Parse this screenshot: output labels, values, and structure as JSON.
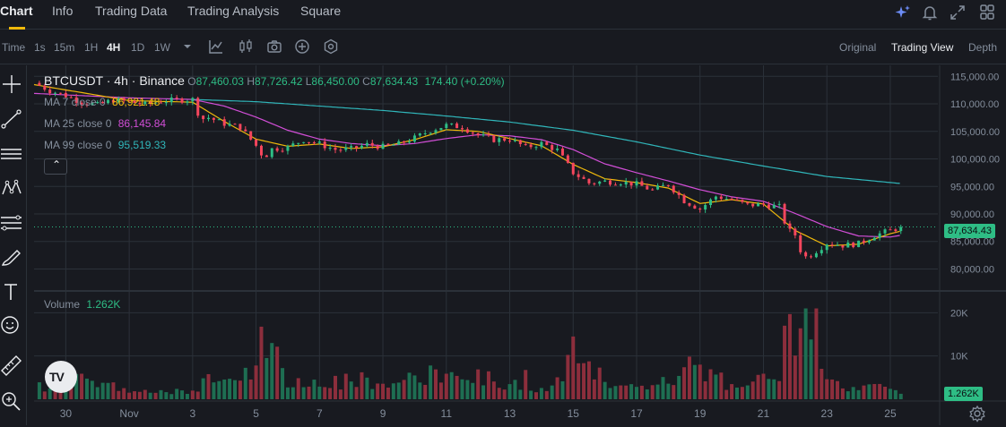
{
  "tabs": [
    {
      "label": "Chart",
      "active": true
    },
    {
      "label": "Info",
      "active": false
    },
    {
      "label": "Trading Data",
      "active": false
    },
    {
      "label": "Trading Analysis",
      "active": false
    },
    {
      "label": "Square",
      "active": false
    }
  ],
  "header_icons": [
    "sparkle-icon",
    "bell-icon",
    "expand-icon",
    "grid-icon"
  ],
  "toolbar": {
    "time_label": "Time",
    "intervals": [
      "1s",
      "15m",
      "1H",
      "4H",
      "1D",
      "1W"
    ],
    "active_interval": "4H",
    "icons": [
      "chevron-down-icon",
      "indicator-icon",
      "chart-type-icon",
      "camera-icon",
      "add-icon",
      "settings-hex-icon"
    ],
    "views": [
      "Original",
      "Trading View",
      "Depth"
    ],
    "active_view": "Trading View"
  },
  "drawing_tools": [
    "crosshair-icon",
    "trendline-icon",
    "horizontal-lines-icon",
    "pattern-icon",
    "fib-icon",
    "brush-icon",
    "text-icon",
    "emoji-icon",
    "ruler-icon",
    "zoom-icon"
  ],
  "legend": {
    "symbol": "BTCUSDT · 4h · Binance",
    "o_key": "O",
    "o_val": "87,460.03",
    "h_key": "H",
    "h_val": "87,726.42",
    "l_key": "L",
    "l_val": "86,450.00",
    "c_key": "C",
    "c_val": "87,634.43",
    "change": "174.40 (+0.20%)",
    "ma7_label": "MA 7 close 0",
    "ma7_val": "86,921.48",
    "ma25_label": "MA 25 close 0",
    "ma25_val": "86,145.84",
    "ma99_label": "MA 99 close 0",
    "ma99_val": "95,519.33",
    "volume_label": "Volume",
    "volume_val": "1.262K",
    "collapse_glyph": "⌃",
    "logo_text": "TV"
  },
  "colors": {
    "up": "#2ebd85",
    "down": "#f6465d",
    "ma7": "#f0b90b",
    "ma25": "#d14ed6",
    "ma99": "#30b6ba",
    "volume_up": "#1e6e52",
    "volume_down": "#8c2e3c",
    "grid": "#2b3139",
    "axis_text": "#848e9c"
  },
  "chart_data": {
    "type": "candlestick",
    "title": "BTCUSDT · 4h · Binance",
    "y_ticks": [
      115000,
      110000,
      105000,
      100000,
      95000,
      90000,
      85000,
      80000
    ],
    "y_tick_labels": [
      "115,000.00",
      "110,000.00",
      "105,000.00",
      "100,000.00",
      "95,000.00",
      "90,000.00",
      "85,000.00",
      "80,000.00"
    ],
    "ylim": [
      76500,
      117000
    ],
    "last_price": 87634.43,
    "last_price_label": "87,634.43",
    "x_tick_labels": [
      "30",
      "Nov",
      "3",
      "5",
      "7",
      "9",
      "11",
      "13",
      "15",
      "17",
      "19",
      "21",
      "23",
      "25"
    ],
    "x_tick_days": [
      -2,
      0,
      2,
      4,
      6,
      8,
      10,
      12,
      14,
      16,
      18,
      20,
      22,
      24
    ],
    "day_range": [
      -3,
      25.5
    ],
    "close_points": [
      [
        -3,
        113800
      ],
      [
        -2.5,
        112400
      ],
      [
        -2,
        111500
      ],
      [
        -1.5,
        110300
      ],
      [
        -1,
        109800
      ],
      [
        -0.5,
        110700
      ],
      [
        0,
        110400
      ],
      [
        0.5,
        109900
      ],
      [
        1,
        110500
      ],
      [
        1.5,
        110700
      ],
      [
        2,
        110800
      ],
      [
        2.25,
        107200
      ],
      [
        2.5,
        107500
      ],
      [
        3,
        106400
      ],
      [
        3.5,
        105800
      ],
      [
        4,
        102400
      ],
      [
        4.25,
        100200
      ],
      [
        4.5,
        101800
      ],
      [
        5,
        102100
      ],
      [
        5.5,
        103500
      ],
      [
        6,
        102700
      ],
      [
        6.5,
        101700
      ],
      [
        7,
        101800
      ],
      [
        7.5,
        102600
      ],
      [
        8,
        102200
      ],
      [
        8.5,
        102700
      ],
      [
        9,
        103800
      ],
      [
        9.5,
        105200
      ],
      [
        10,
        106100
      ],
      [
        10.5,
        105800
      ],
      [
        11,
        104300
      ],
      [
        11.5,
        103500
      ],
      [
        12,
        103600
      ],
      [
        12.5,
        102100
      ],
      [
        13,
        102800
      ],
      [
        13.5,
        101600
      ],
      [
        14,
        97500
      ],
      [
        14.5,
        95600
      ],
      [
        15,
        95900
      ],
      [
        15.5,
        95800
      ],
      [
        16,
        95400
      ],
      [
        16.5,
        94300
      ],
      [
        17,
        95400
      ],
      [
        17.5,
        92400
      ],
      [
        18,
        90900
      ],
      [
        18.5,
        93200
      ],
      [
        19,
        92600
      ],
      [
        19.5,
        91600
      ],
      [
        20,
        91700
      ],
      [
        20.5,
        91300
      ],
      [
        20.75,
        87200
      ],
      [
        21,
        86200
      ],
      [
        21.25,
        82000
      ],
      [
        21.5,
        82600
      ],
      [
        22,
        84700
      ],
      [
        22.5,
        84300
      ],
      [
        23,
        84600
      ],
      [
        23.5,
        86100
      ],
      [
        24,
        87000
      ],
      [
        24.35,
        87634
      ]
    ],
    "ma7": [
      [
        -3,
        113500
      ],
      [
        0,
        110600
      ],
      [
        2,
        110300
      ],
      [
        3,
        106800
      ],
      [
        4,
        103600
      ],
      [
        5,
        102300
      ],
      [
        6,
        102700
      ],
      [
        7,
        101900
      ],
      [
        8,
        102200
      ],
      [
        9,
        103500
      ],
      [
        10,
        105300
      ],
      [
        11,
        105000
      ],
      [
        12,
        103700
      ],
      [
        13,
        102400
      ],
      [
        14,
        99000
      ],
      [
        15,
        96400
      ],
      [
        16,
        95700
      ],
      [
        17,
        94700
      ],
      [
        18,
        91900
      ],
      [
        19,
        92600
      ],
      [
        20,
        91800
      ],
      [
        21,
        87000
      ],
      [
        22,
        84200
      ],
      [
        23,
        84500
      ],
      [
        24,
        86400
      ],
      [
        24.35,
        86921
      ]
    ],
    "ma25": [
      [
        -3,
        111900
      ],
      [
        0,
        111100
      ],
      [
        2,
        110800
      ],
      [
        3,
        109600
      ],
      [
        4,
        107600
      ],
      [
        5,
        105200
      ],
      [
        6,
        103600
      ],
      [
        7,
        102800
      ],
      [
        8,
        102400
      ],
      [
        9,
        102800
      ],
      [
        10,
        103700
      ],
      [
        11,
        104400
      ],
      [
        12,
        104200
      ],
      [
        13,
        103500
      ],
      [
        14,
        101700
      ],
      [
        15,
        99100
      ],
      [
        16,
        97500
      ],
      [
        17,
        96000
      ],
      [
        18,
        94400
      ],
      [
        19,
        93100
      ],
      [
        20,
        92300
      ],
      [
        21,
        90100
      ],
      [
        22,
        87700
      ],
      [
        23,
        86000
      ],
      [
        24,
        85800
      ],
      [
        24.35,
        86145
      ]
    ],
    "ma99": [
      [
        2,
        110800
      ],
      [
        4,
        110400
      ],
      [
        6,
        109600
      ],
      [
        8,
        108800
      ],
      [
        10,
        107800
      ],
      [
        12,
        106700
      ],
      [
        14,
        105200
      ],
      [
        16,
        103100
      ],
      [
        18,
        100700
      ],
      [
        20,
        98700
      ],
      [
        22,
        96800
      ],
      [
        24.35,
        95519
      ]
    ],
    "volume": {
      "label": "Volume",
      "scale_ticks": [
        20000,
        10000
      ],
      "scale_tick_labels": [
        "20K",
        "10K"
      ],
      "last_label": "1.262K",
      "bars": [
        [
          -3,
          3200,
          0
        ],
        [
          -2.5,
          2500,
          1
        ],
        [
          -2,
          4100,
          0
        ],
        [
          -1.5,
          5200,
          0
        ],
        [
          -1,
          2800,
          1
        ],
        [
          -0.5,
          3900,
          0
        ],
        [
          0,
          2600,
          1
        ],
        [
          0.5,
          3100,
          0
        ],
        [
          1,
          2100,
          1
        ],
        [
          1.5,
          2400,
          1
        ],
        [
          2,
          2000,
          0
        ],
        [
          2.25,
          4200,
          0
        ],
        [
          2.5,
          5800,
          0
        ],
        [
          3,
          3600,
          0
        ],
        [
          3.5,
          4300,
          0
        ],
        [
          4,
          7800,
          0
        ],
        [
          4.25,
          15800,
          0
        ],
        [
          4.5,
          13000,
          1
        ],
        [
          5,
          5100,
          1
        ],
        [
          5.5,
          4400,
          1
        ],
        [
          6,
          3200,
          0
        ],
        [
          6.5,
          5400,
          0
        ],
        [
          7,
          4100,
          1
        ],
        [
          7.5,
          5000,
          1
        ],
        [
          8,
          2800,
          0
        ],
        [
          8.5,
          3300,
          1
        ],
        [
          9,
          5500,
          1
        ],
        [
          9.5,
          7800,
          1
        ],
        [
          10,
          5900,
          0
        ],
        [
          10.5,
          4600,
          1
        ],
        [
          11,
          6900,
          0
        ],
        [
          11.5,
          4100,
          0
        ],
        [
          12,
          3500,
          1
        ],
        [
          12.5,
          5100,
          0
        ],
        [
          13,
          2600,
          1
        ],
        [
          13.5,
          5400,
          0
        ],
        [
          14,
          14500,
          0
        ],
        [
          14.5,
          8700,
          0
        ],
        [
          15,
          4000,
          1
        ],
        [
          15.5,
          3200,
          0
        ],
        [
          16,
          2600,
          0
        ],
        [
          16.5,
          5000,
          0
        ],
        [
          17,
          3600,
          1
        ],
        [
          17.5,
          7400,
          0
        ],
        [
          18,
          8000,
          0
        ],
        [
          18.5,
          5700,
          1
        ],
        [
          19,
          3500,
          0
        ],
        [
          19.5,
          3200,
          1
        ],
        [
          20,
          5900,
          0
        ],
        [
          20.5,
          4200,
          0
        ],
        [
          20.75,
          17000,
          0
        ],
        [
          21,
          10100,
          0
        ],
        [
          21.25,
          16400,
          0
        ],
        [
          21.5,
          22300,
          1
        ],
        [
          22,
          5100,
          1
        ],
        [
          22.5,
          2500,
          0
        ],
        [
          23,
          2100,
          1
        ],
        [
          23.5,
          2900,
          1
        ],
        [
          24,
          2400,
          1
        ],
        [
          24.35,
          1262,
          1
        ]
      ]
    }
  }
}
